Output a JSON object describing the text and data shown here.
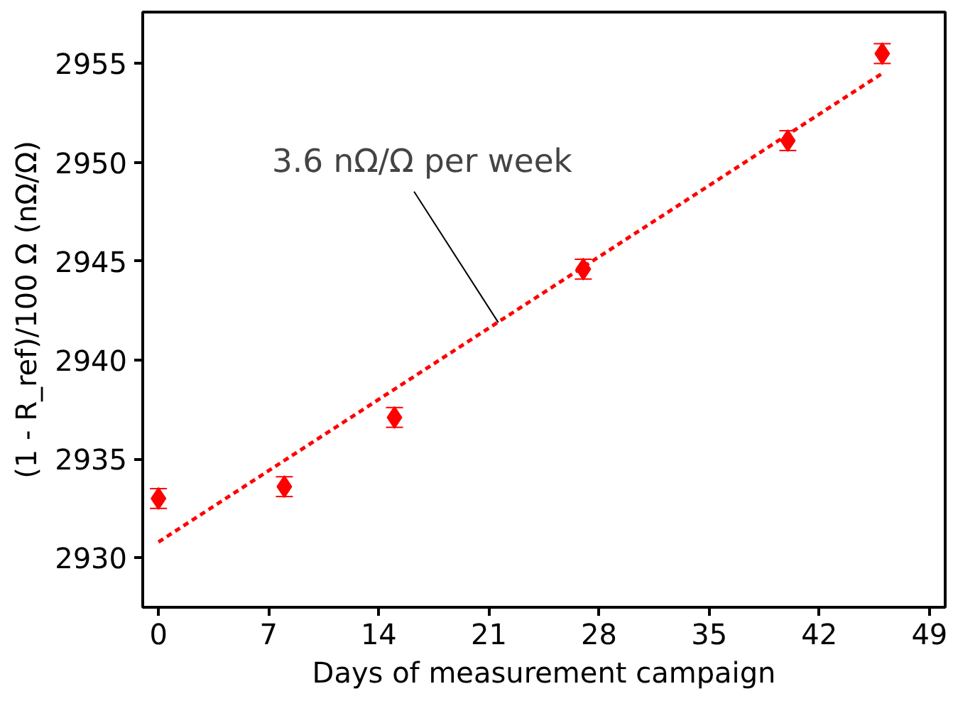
{
  "chart_data": {
    "type": "scatter",
    "xlabel": "Days of measurement campaign",
    "ylabel": "(1 - R_ref)/100 Ω (nΩ/Ω)",
    "xlim": [
      -1,
      50
    ],
    "xticks": [
      0,
      7,
      14,
      21,
      28,
      35,
      42,
      49
    ],
    "ylim": [
      2927.5,
      2957.6
    ],
    "yticks": [
      2930,
      2935,
      2940,
      2945,
      2950,
      2955
    ],
    "grid": false,
    "annotations": [
      {
        "text": "3.6 nΩ/Ω per week",
        "x": 21.6,
        "y": 2941.9
      }
    ],
    "series": [
      {
        "color": "#ff0000",
        "marker": "diamond",
        "x": [
          0,
          8,
          15,
          27,
          40,
          46
        ],
        "values": [
          2933.0,
          2933.6,
          2937.1,
          2944.6,
          2951.1,
          2955.5
        ],
        "errors": [
          0.5,
          0.5,
          0.5,
          0.5,
          0.5,
          0.5
        ]
      },
      {
        "type": "line",
        "color": "#ff0000",
        "line_style": "dashed",
        "x": [
          0,
          46
        ],
        "values": [
          2930.8,
          2954.5
        ]
      }
    ]
  }
}
